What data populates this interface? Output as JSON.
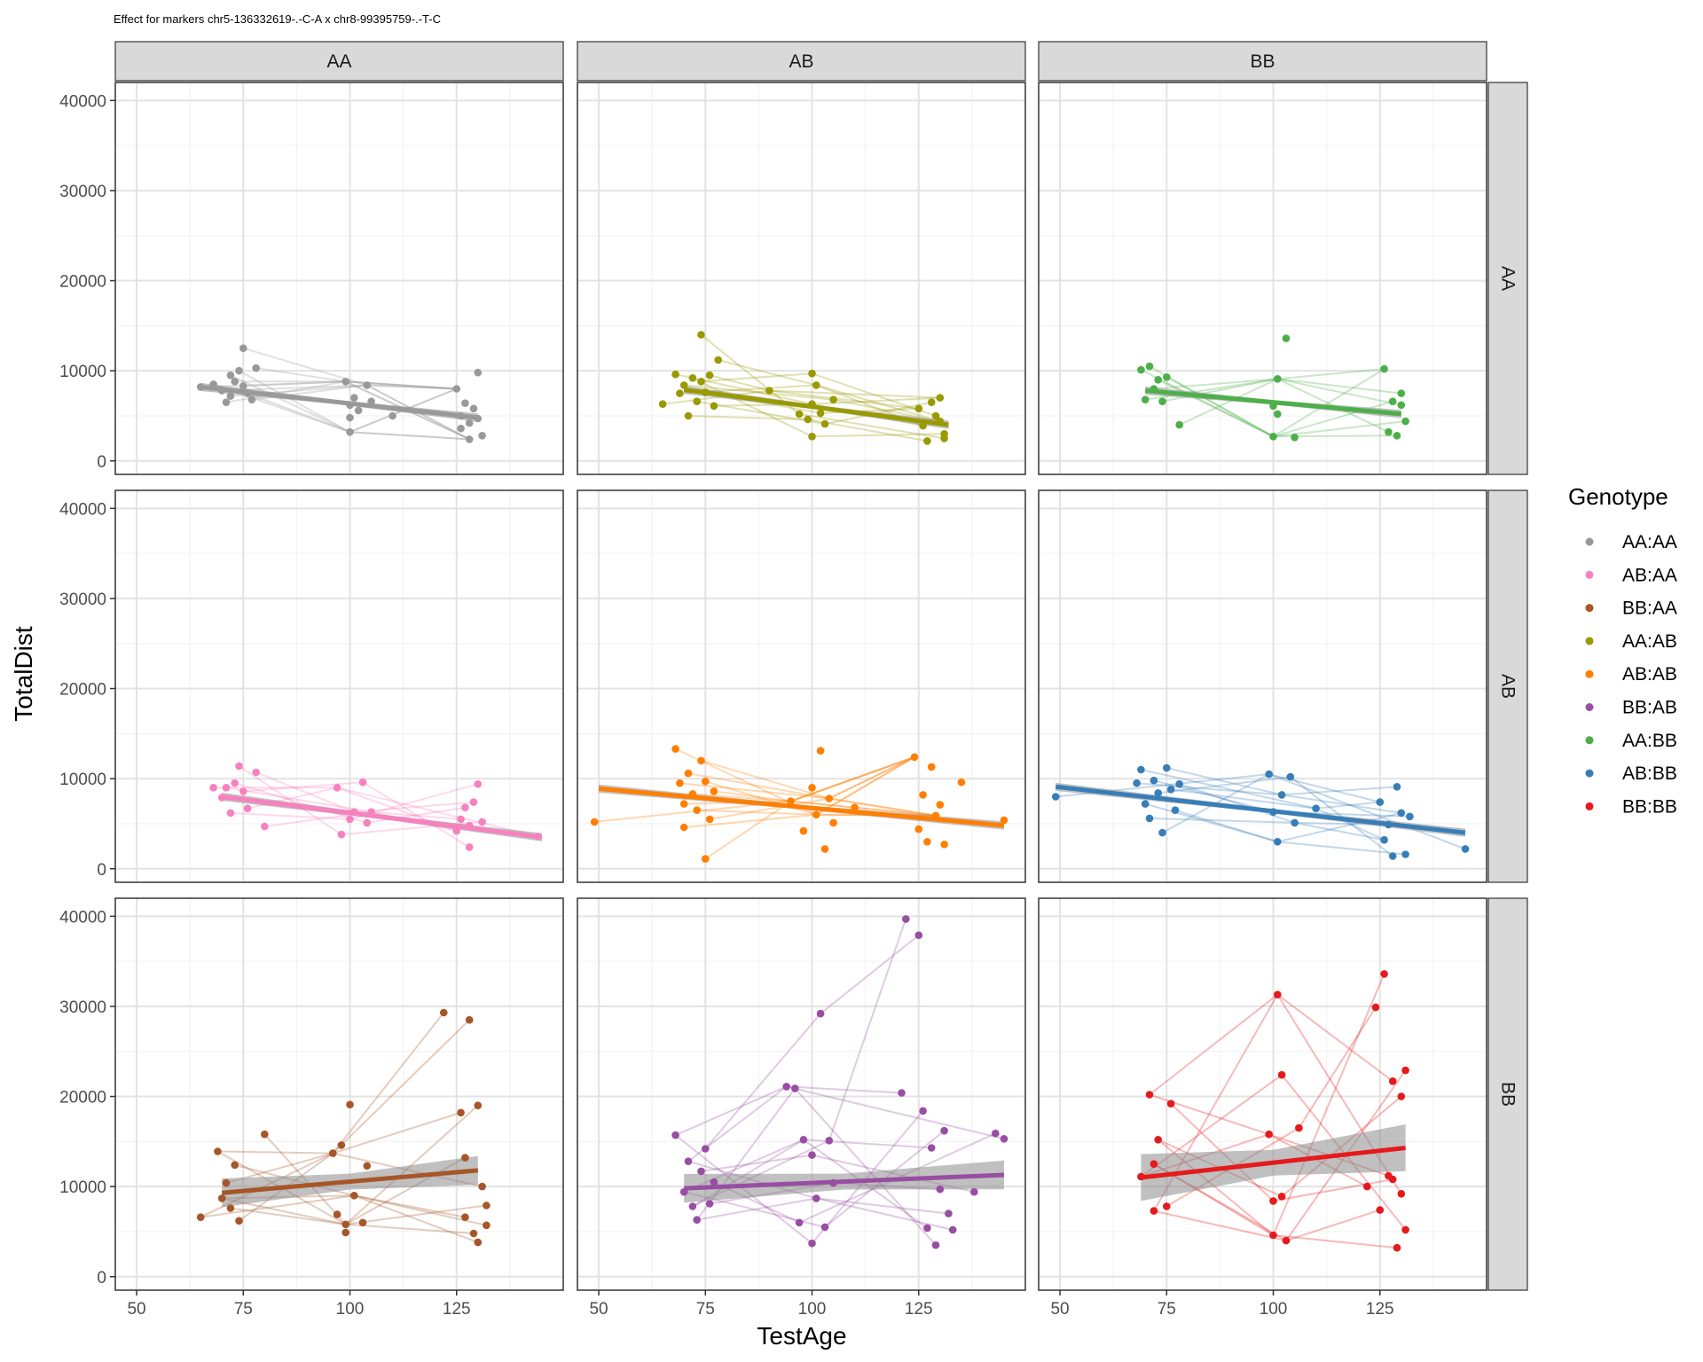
{
  "figure": {
    "title": "Effect for markers chr5-136332619-.-C-A x chr8-99395759-.-T-C"
  },
  "chart_data": {
    "type": "scatter",
    "facet_cols": [
      "AA",
      "AB",
      "BB"
    ],
    "facet_rows": [
      "AA",
      "AB",
      "BB"
    ],
    "xlabel": "TestAge",
    "ylabel": "TotalDist",
    "xlim": [
      45,
      150
    ],
    "ylim": [
      -1500,
      42000
    ],
    "x_ticks": [
      50,
      75,
      100,
      125
    ],
    "x_tick_labels": [
      "50",
      "75",
      "100",
      "125"
    ],
    "y_ticks": [
      0,
      10000,
      20000,
      30000,
      40000
    ],
    "y_tick_labels": [
      "0",
      "10000",
      "20000",
      "30000",
      "40000"
    ],
    "grid": true,
    "legend": {
      "title": "Genotype",
      "position": "right",
      "items": [
        {
          "label": "AA:AA",
          "color": "#999999"
        },
        {
          "label": "AB:AA",
          "color": "#f781bf"
        },
        {
          "label": "BB:AA",
          "color": "#a65628"
        },
        {
          "label": "AA:AB",
          "color": "#999900"
        },
        {
          "label": "AB:AB",
          "color": "#ff7f00"
        },
        {
          "label": "BB:AB",
          "color": "#984ea3"
        },
        {
          "label": "AA:BB",
          "color": "#4daf4a"
        },
        {
          "label": "AB:BB",
          "color": "#377eb8"
        },
        {
          "label": "BB:BB",
          "color": "#e41a1c"
        }
      ]
    },
    "panels": [
      {
        "row": 0,
        "col": 0,
        "genotype": "AA:AA",
        "color": "#999999",
        "fit": {
          "x": [
            65,
            130
          ],
          "y": [
            8200,
            4800
          ]
        },
        "points": [
          [
            65,
            8200
          ],
          [
            68,
            8500
          ],
          [
            70,
            7800
          ],
          [
            71,
            6500
          ],
          [
            72,
            9500
          ],
          [
            72,
            7200
          ],
          [
            73,
            8800
          ],
          [
            74,
            10000
          ],
          [
            75,
            12500
          ],
          [
            75,
            8300
          ],
          [
            76,
            7500
          ],
          [
            77,
            6800
          ],
          [
            78,
            10300
          ],
          [
            99,
            8800
          ],
          [
            100,
            6200
          ],
          [
            100,
            4800
          ],
          [
            100,
            3200
          ],
          [
            101,
            7000
          ],
          [
            102,
            5600
          ],
          [
            104,
            8400
          ],
          [
            105,
            6600
          ],
          [
            110,
            5000
          ],
          [
            125,
            8000
          ],
          [
            126,
            5000
          ],
          [
            126,
            3600
          ],
          [
            127,
            6400
          ],
          [
            128,
            4200
          ],
          [
            128,
            2400
          ],
          [
            129,
            5800
          ],
          [
            130,
            9800
          ],
          [
            130,
            4700
          ],
          [
            131,
            2800
          ]
        ]
      },
      {
        "row": 0,
        "col": 1,
        "genotype": "AA:AB",
        "color": "#999900",
        "fit": {
          "x": [
            70,
            132
          ],
          "y": [
            7900,
            4000
          ]
        },
        "points": [
          [
            65,
            6300
          ],
          [
            68,
            9600
          ],
          [
            69,
            7500
          ],
          [
            70,
            8400
          ],
          [
            71,
            5000
          ],
          [
            72,
            9200
          ],
          [
            73,
            6600
          ],
          [
            74,
            14000
          ],
          [
            74,
            8800
          ],
          [
            75,
            7600
          ],
          [
            76,
            9500
          ],
          [
            77,
            6100
          ],
          [
            78,
            11200
          ],
          [
            90,
            7800
          ],
          [
            97,
            5200
          ],
          [
            99,
            4600
          ],
          [
            100,
            6300
          ],
          [
            100,
            9700
          ],
          [
            100,
            2700
          ],
          [
            101,
            8400
          ],
          [
            102,
            5300
          ],
          [
            103,
            4100
          ],
          [
            105,
            6800
          ],
          [
            125,
            5800
          ],
          [
            126,
            3900
          ],
          [
            127,
            2200
          ],
          [
            128,
            6500
          ],
          [
            129,
            5000
          ],
          [
            130,
            7000
          ],
          [
            130,
            4400
          ],
          [
            131,
            3000
          ],
          [
            131,
            2500
          ]
        ]
      },
      {
        "row": 0,
        "col": 2,
        "genotype": "AA:BB",
        "color": "#4daf4a",
        "fit": {
          "x": [
            70,
            130
          ],
          "y": [
            7800,
            5200
          ]
        },
        "points": [
          [
            69,
            10100
          ],
          [
            70,
            6800
          ],
          [
            71,
            10500
          ],
          [
            72,
            8000
          ],
          [
            73,
            9000
          ],
          [
            74,
            6600
          ],
          [
            75,
            9300
          ],
          [
            78,
            4000
          ],
          [
            100,
            2700
          ],
          [
            100,
            6100
          ],
          [
            101,
            5200
          ],
          [
            101,
            9100
          ],
          [
            103,
            13600
          ],
          [
            105,
            2600
          ],
          [
            126,
            10200
          ],
          [
            127,
            3200
          ],
          [
            128,
            6600
          ],
          [
            129,
            2800
          ],
          [
            130,
            6200
          ],
          [
            130,
            7500
          ],
          [
            131,
            4400
          ]
        ]
      },
      {
        "row": 1,
        "col": 0,
        "genotype": "AB:AA",
        "color": "#f781bf",
        "fit": {
          "x": [
            70,
            145
          ],
          "y": [
            8000,
            3500
          ]
        },
        "points": [
          [
            68,
            9000
          ],
          [
            70,
            7900
          ],
          [
            71,
            9000
          ],
          [
            72,
            6200
          ],
          [
            73,
            9500
          ],
          [
            74,
            11400
          ],
          [
            75,
            8600
          ],
          [
            76,
            6700
          ],
          [
            78,
            10700
          ],
          [
            80,
            4700
          ],
          [
            97,
            9000
          ],
          [
            98,
            3800
          ],
          [
            100,
            5500
          ],
          [
            101,
            6300
          ],
          [
            103,
            9600
          ],
          [
            104,
            5100
          ],
          [
            105,
            6300
          ],
          [
            125,
            4200
          ],
          [
            126,
            5500
          ],
          [
            127,
            6800
          ],
          [
            128,
            2400
          ],
          [
            128,
            4800
          ],
          [
            129,
            7400
          ],
          [
            130,
            9400
          ],
          [
            131,
            5200
          ],
          [
            144,
            3600
          ]
        ]
      },
      {
        "row": 1,
        "col": 1,
        "genotype": "AB:AB",
        "color": "#ff7f00",
        "fit": {
          "x": [
            50,
            145
          ],
          "y": [
            8900,
            4800
          ]
        },
        "points": [
          [
            49,
            5200
          ],
          [
            68,
            13300
          ],
          [
            69,
            9500
          ],
          [
            70,
            7200
          ],
          [
            70,
            4600
          ],
          [
            71,
            10600
          ],
          [
            72,
            8300
          ],
          [
            73,
            6500
          ],
          [
            74,
            12000
          ],
          [
            75,
            1100
          ],
          [
            75,
            9700
          ],
          [
            76,
            5500
          ],
          [
            77,
            8600
          ],
          [
            95,
            7500
          ],
          [
            98,
            4200
          ],
          [
            100,
            9000
          ],
          [
            101,
            6000
          ],
          [
            102,
            13100
          ],
          [
            103,
            2200
          ],
          [
            104,
            7800
          ],
          [
            105,
            5100
          ],
          [
            110,
            6800
          ],
          [
            124,
            12400
          ],
          [
            125,
            4400
          ],
          [
            126,
            8200
          ],
          [
            127,
            3000
          ],
          [
            128,
            11300
          ],
          [
            129,
            5900
          ],
          [
            130,
            7100
          ],
          [
            131,
            2700
          ],
          [
            135,
            9600
          ],
          [
            145,
            5400
          ]
        ]
      },
      {
        "row": 1,
        "col": 2,
        "genotype": "AB:BB",
        "color": "#377eb8",
        "fit": {
          "x": [
            49,
            145
          ],
          "y": [
            9100,
            4000
          ]
        },
        "points": [
          [
            49,
            8000
          ],
          [
            68,
            9500
          ],
          [
            69,
            11000
          ],
          [
            70,
            7200
          ],
          [
            71,
            5600
          ],
          [
            72,
            9800
          ],
          [
            73,
            8400
          ],
          [
            74,
            4000
          ],
          [
            75,
            11200
          ],
          [
            76,
            8800
          ],
          [
            77,
            6500
          ],
          [
            78,
            9400
          ],
          [
            99,
            10500
          ],
          [
            100,
            6300
          ],
          [
            101,
            3000
          ],
          [
            102,
            8200
          ],
          [
            104,
            10200
          ],
          [
            105,
            5100
          ],
          [
            110,
            6700
          ],
          [
            125,
            7400
          ],
          [
            126,
            3200
          ],
          [
            127,
            4900
          ],
          [
            128,
            1400
          ],
          [
            129,
            9100
          ],
          [
            130,
            6200
          ],
          [
            131,
            1600
          ],
          [
            132,
            5800
          ],
          [
            145,
            2200
          ]
        ]
      },
      {
        "row": 2,
        "col": 0,
        "genotype": "BB:AA",
        "color": "#a65628",
        "fit": {
          "x": [
            70,
            130
          ],
          "y": [
            9300,
            11800
          ]
        },
        "points": [
          [
            65,
            6600
          ],
          [
            69,
            13900
          ],
          [
            70,
            8700
          ],
          [
            71,
            10400
          ],
          [
            72,
            7600
          ],
          [
            73,
            12400
          ],
          [
            74,
            6200
          ],
          [
            80,
            15800
          ],
          [
            96,
            13700
          ],
          [
            97,
            6900
          ],
          [
            98,
            14600
          ],
          [
            99,
            5800
          ],
          [
            99,
            4900
          ],
          [
            100,
            19100
          ],
          [
            101,
            9000
          ],
          [
            103,
            6000
          ],
          [
            104,
            12300
          ],
          [
            122,
            29300
          ],
          [
            126,
            18200
          ],
          [
            127,
            13200
          ],
          [
            127,
            6600
          ],
          [
            128,
            28500
          ],
          [
            129,
            4800
          ],
          [
            130,
            19000
          ],
          [
            130,
            3800
          ],
          [
            131,
            10000
          ],
          [
            132,
            7900
          ],
          [
            132,
            5700
          ]
        ]
      },
      {
        "row": 2,
        "col": 1,
        "genotype": "BB:AB",
        "color": "#984ea3",
        "fit": {
          "x": [
            70,
            145
          ],
          "y": [
            9800,
            11300
          ]
        },
        "points": [
          [
            68,
            15700
          ],
          [
            70,
            9400
          ],
          [
            71,
            12800
          ],
          [
            72,
            7800
          ],
          [
            73,
            6300
          ],
          [
            74,
            11700
          ],
          [
            75,
            14200
          ],
          [
            76,
            8100
          ],
          [
            77,
            10500
          ],
          [
            94,
            21100
          ],
          [
            96,
            20900
          ],
          [
            97,
            6000
          ],
          [
            98,
            15200
          ],
          [
            100,
            13500
          ],
          [
            100,
            3700
          ],
          [
            101,
            8700
          ],
          [
            102,
            29200
          ],
          [
            103,
            5500
          ],
          [
            104,
            15100
          ],
          [
            105,
            10400
          ],
          [
            121,
            20400
          ],
          [
            122,
            39700
          ],
          [
            125,
            37900
          ],
          [
            126,
            18400
          ],
          [
            127,
            5400
          ],
          [
            128,
            14300
          ],
          [
            129,
            3500
          ],
          [
            130,
            9700
          ],
          [
            131,
            16200
          ],
          [
            132,
            7000
          ],
          [
            133,
            5200
          ],
          [
            138,
            9400
          ],
          [
            143,
            15900
          ],
          [
            145,
            15300
          ]
        ]
      },
      {
        "row": 2,
        "col": 2,
        "genotype": "BB:BB",
        "color": "#e41a1c",
        "fit": {
          "x": [
            69,
            131
          ],
          "y": [
            11000,
            14300
          ]
        },
        "points": [
          [
            69,
            11100
          ],
          [
            71,
            20200
          ],
          [
            72,
            7300
          ],
          [
            72,
            12500
          ],
          [
            73,
            15200
          ],
          [
            75,
            7800
          ],
          [
            76,
            19200
          ],
          [
            99,
            15800
          ],
          [
            100,
            4600
          ],
          [
            100,
            8400
          ],
          [
            101,
            31300
          ],
          [
            102,
            8900
          ],
          [
            102,
            22400
          ],
          [
            103,
            4000
          ],
          [
            106,
            16500
          ],
          [
            122,
            10000
          ],
          [
            124,
            29900
          ],
          [
            125,
            7400
          ],
          [
            126,
            33600
          ],
          [
            127,
            11200
          ],
          [
            128,
            21700
          ],
          [
            128,
            10800
          ],
          [
            129,
            3200
          ],
          [
            130,
            20000
          ],
          [
            130,
            9200
          ],
          [
            131,
            22900
          ],
          [
            131,
            5200
          ]
        ]
      }
    ]
  }
}
